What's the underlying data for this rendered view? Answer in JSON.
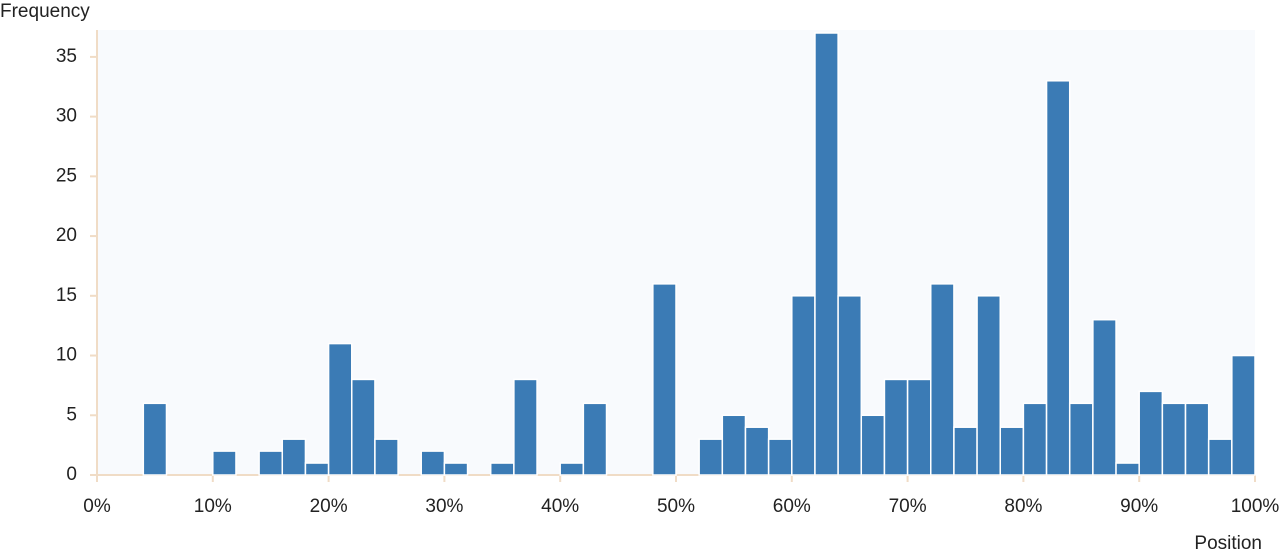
{
  "chart_data": {
    "type": "histogram",
    "x_label": "Position",
    "y_label": "Frequency",
    "bins": [
      0,
      2,
      4,
      6,
      8,
      10,
      12,
      14,
      16,
      18,
      20,
      22,
      24,
      26,
      28,
      30,
      32,
      34,
      36,
      38,
      40,
      42,
      44,
      46,
      48,
      50,
      52,
      54,
      56,
      58,
      60,
      62,
      64,
      66,
      68,
      70,
      72,
      74,
      76,
      78,
      80,
      82,
      84,
      86,
      88,
      90,
      92,
      94,
      96,
      98,
      100
    ],
    "counts": [
      0,
      0,
      6,
      0,
      0,
      2,
      0,
      2,
      3,
      1,
      11,
      8,
      3,
      0,
      2,
      1,
      0,
      1,
      8,
      0,
      1,
      6,
      0,
      0,
      16,
      0,
      3,
      5,
      4,
      3,
      15,
      37,
      15,
      5,
      8,
      8,
      16,
      4,
      15,
      4,
      6,
      33,
      6,
      13,
      1,
      7,
      6,
      6,
      3,
      10
    ],
    "color": "#3b7bb5",
    "xlim": [
      0,
      100
    ],
    "xticks": [
      {
        "value": 0,
        "label": "0%"
      },
      {
        "value": 10,
        "label": "10%"
      },
      {
        "value": 20,
        "label": "20%"
      },
      {
        "value": 30,
        "label": "30%"
      },
      {
        "value": 40,
        "label": "40%"
      },
      {
        "value": 50,
        "label": "50%"
      },
      {
        "value": 60,
        "label": "60%"
      },
      {
        "value": 70,
        "label": "70%"
      },
      {
        "value": 80,
        "label": "80%"
      },
      {
        "value": 90,
        "label": "90%"
      },
      {
        "value": 100,
        "label": "100%"
      }
    ],
    "ylim": [
      0,
      37
    ],
    "yticks": [
      0,
      5,
      10,
      15,
      20,
      25,
      30,
      35
    ],
    "grid": false
  }
}
